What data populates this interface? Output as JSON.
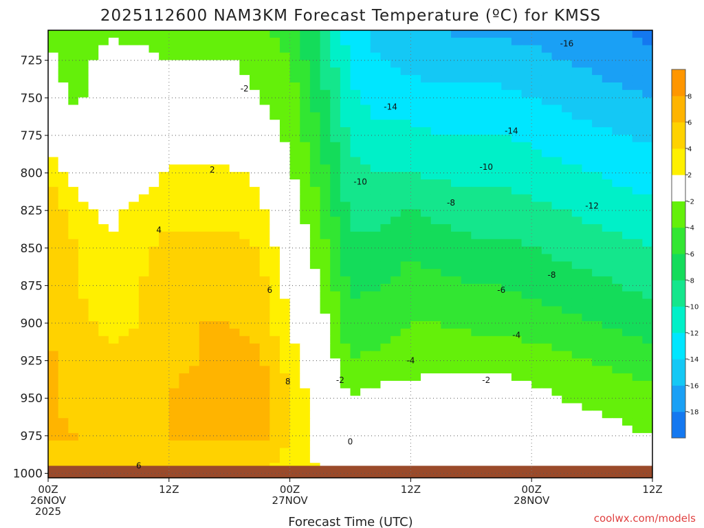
{
  "chart_data": {
    "type": "heatmap",
    "title": "2025112600 NAM3KM Forecast Temperature (ºC) for KMSS",
    "xlabel": "Forecast Time (UTC)",
    "ylabel": "",
    "x_ticks": [
      {
        "hour": 0,
        "lines": [
          "00Z",
          "26NOV",
          "2025"
        ]
      },
      {
        "hour": 12,
        "lines": [
          "12Z"
        ]
      },
      {
        "hour": 24,
        "lines": [
          "00Z",
          "27NOV"
        ]
      },
      {
        "hour": 36,
        "lines": [
          "12Z"
        ]
      },
      {
        "hour": 48,
        "lines": [
          "00Z",
          "28NOV"
        ]
      },
      {
        "hour": 60,
        "lines": [
          "12Z"
        ]
      }
    ],
    "xlim": [
      0,
      60
    ],
    "y_ticks": [
      725,
      750,
      775,
      800,
      825,
      850,
      875,
      900,
      925,
      950,
      975,
      1000
    ],
    "ylim": [
      1003,
      705
    ],
    "ground_pressure_hPa": 995,
    "colorbar": {
      "levels": [
        -18,
        -16,
        -14,
        -12,
        -10,
        -8,
        -6,
        -4,
        -2,
        2,
        4,
        6,
        8
      ],
      "colors": [
        "#1478f0",
        "#1aa0f5",
        "#14c8f5",
        "#00e6ff",
        "#00f0c8",
        "#14e68c",
        "#14dc5a",
        "#32e632",
        "#64f00a",
        "#ffffff",
        "#fff000",
        "#ffd200",
        "#ffb400",
        "#ff9600"
      ]
    },
    "temperature_grid": {
      "pressures": [
        705,
        725,
        750,
        775,
        800,
        825,
        850,
        875,
        900,
        925,
        950,
        975,
        1000
      ],
      "hours": [
        0,
        3,
        6,
        9,
        12,
        15,
        18,
        21,
        24,
        27,
        30,
        33,
        36,
        39,
        42,
        45,
        48,
        51,
        54,
        57,
        60
      ],
      "values": [
        [
          -3.5,
          -3,
          -2.5,
          -2.5,
          -3,
          -3,
          -3,
          -3.5,
          -5,
          -8,
          -13,
          -15,
          -16,
          -16,
          -16.5,
          -16.5,
          -16.5,
          -17,
          -17.5,
          -18,
          -18.5
        ],
        [
          -1.5,
          -3,
          -1,
          -1.5,
          -2,
          -2,
          -2,
          -2.5,
          -4,
          -8,
          -12.5,
          -14,
          -14.5,
          -15,
          -15,
          -15,
          -15.5,
          -16,
          -16.5,
          -17,
          -17.5
        ],
        [
          -1,
          -2.5,
          1,
          0.5,
          -1,
          -1,
          -1,
          -2,
          -3,
          -7,
          -11.5,
          -13,
          -13,
          -13.5,
          -13.5,
          -13.5,
          -14,
          -14.5,
          -15,
          -15.5,
          -16
        ],
        [
          1,
          -1,
          0,
          -1,
          0,
          -1,
          -0.5,
          -1,
          -2.5,
          -6,
          -10.5,
          -11.5,
          -11.5,
          -12,
          -12,
          -12,
          -12.5,
          -13,
          -13.5,
          -14,
          -14.5
        ],
        [
          4,
          0.5,
          0,
          0.5,
          2.5,
          2.5,
          2.5,
          1.5,
          -1.5,
          -5,
          -9.5,
          -10,
          -10,
          -10.5,
          -10.5,
          -10.5,
          -11,
          -11.5,
          -12,
          -12.5,
          -13
        ],
        [
          5,
          3,
          1.5,
          3,
          3.5,
          3.5,
          3.5,
          2.5,
          -0.5,
          -4,
          -8.5,
          -8.5,
          -8,
          -8.5,
          -9,
          -9,
          -9.5,
          -10,
          -10.5,
          -11,
          -11.5
        ],
        [
          5,
          4,
          2,
          3.5,
          4.5,
          4.5,
          4.5,
          4,
          0,
          -3,
          -7.5,
          -7.5,
          -6.5,
          -7,
          -7.5,
          -7.5,
          -8,
          -8.5,
          -9,
          -9.5,
          -10
        ],
        [
          5,
          4,
          2.5,
          4,
          5,
          5,
          5,
          5,
          1,
          -2,
          -6.5,
          -6,
          -5,
          -5.5,
          -6,
          -6,
          -6.5,
          -7,
          -7.5,
          -8,
          -8.5
        ],
        [
          5.5,
          4.5,
          3.5,
          4,
          5.5,
          6,
          6,
          5.5,
          2,
          -1,
          -5.5,
          -5,
          -4,
          -4,
          -4.5,
          -4.5,
          -5,
          -5.5,
          -6,
          -6.5,
          -7
        ],
        [
          6.5,
          5,
          4.5,
          4.5,
          5.5,
          6,
          6.5,
          6.5,
          3,
          0,
          -4,
          -3.5,
          -3,
          -2.5,
          -2.5,
          -2.5,
          -3,
          -3.5,
          -4,
          -4.5,
          -5
        ],
        [
          6.5,
          5,
          4.5,
          5,
          6,
          7,
          7.5,
          7.5,
          4,
          0.5,
          -2,
          -1,
          -1,
          -1,
          -1,
          -1,
          -1.5,
          -2,
          -2.5,
          -3,
          -3.5
        ],
        [
          6.5,
          6,
          5.5,
          6,
          6,
          6.5,
          6.5,
          6.5,
          4,
          1,
          -0.5,
          0,
          0,
          0,
          0.5,
          0.5,
          0,
          -0.5,
          -1,
          -1.5,
          -2
        ],
        [
          4,
          4,
          4,
          4,
          4,
          4,
          4,
          4,
          3,
          2,
          1,
          1,
          1,
          1,
          1,
          1,
          1,
          0.5,
          0,
          -0.5,
          -1
        ]
      ]
    },
    "contour_labels": [
      {
        "text": "-16",
        "hour": 51.5,
        "p": 714
      },
      {
        "text": "-2",
        "hour": 19.5,
        "p": 744
      },
      {
        "text": "-14",
        "hour": 34,
        "p": 756
      },
      {
        "text": "-14",
        "hour": 46,
        "p": 772
      },
      {
        "text": "2",
        "hour": 16.3,
        "p": 798
      },
      {
        "text": "-10",
        "hour": 31,
        "p": 806
      },
      {
        "text": "-10",
        "hour": 43.5,
        "p": 796
      },
      {
        "text": "-8",
        "hour": 40,
        "p": 820
      },
      {
        "text": "-12",
        "hour": 54,
        "p": 822
      },
      {
        "text": "4",
        "hour": 11,
        "p": 838
      },
      {
        "text": "-8",
        "hour": 50,
        "p": 868
      },
      {
        "text": "6",
        "hour": 22,
        "p": 878
      },
      {
        "text": "-6",
        "hour": 45,
        "p": 878
      },
      {
        "text": "-4",
        "hour": 46.5,
        "p": 908
      },
      {
        "text": "-4",
        "hour": 36,
        "p": 925
      },
      {
        "text": "-2",
        "hour": 29,
        "p": 938
      },
      {
        "text": "-2",
        "hour": 43.5,
        "p": 938
      },
      {
        "text": "8",
        "hour": 23.8,
        "p": 939
      },
      {
        "text": "0",
        "hour": 30,
        "p": 979
      },
      {
        "text": "6",
        "hour": 9,
        "p": 995
      }
    ]
  },
  "credit": "coolwx.com/models"
}
